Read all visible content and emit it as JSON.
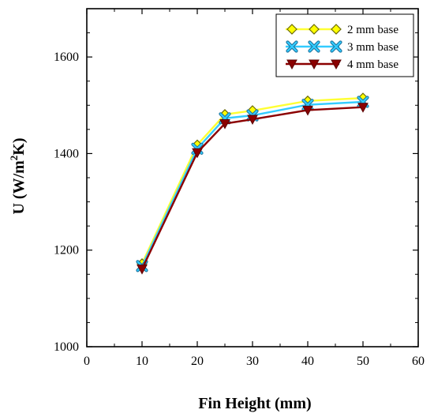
{
  "chart_data": {
    "type": "line",
    "title": "",
    "xlabel": "Fin Height (mm)",
    "ylabel_main": "U (W/m",
    "ylabel_sup": "2",
    "ylabel_tail": "K)",
    "xlim": [
      0,
      60
    ],
    "ylim": [
      1000,
      1700
    ],
    "xticks": [
      0,
      10,
      20,
      30,
      40,
      50,
      60
    ],
    "yticks": [
      1000,
      1200,
      1400,
      1600
    ],
    "grid": false,
    "legend_position": "top-right",
    "x": [
      10,
      20,
      25,
      30,
      40,
      50
    ],
    "series": [
      {
        "name": "2 mm base",
        "marker": "diamond",
        "color": "#ffff33",
        "marker_fill": "#ffff00",
        "marker_stroke": "#6b6b00",
        "values": [
          1172,
          1418,
          1481,
          1489,
          1509,
          1515
        ]
      },
      {
        "name": "3 mm base",
        "marker": "x",
        "color": "#33ccff",
        "marker_fill": "#33ccff",
        "marker_stroke": "#1a6f9a",
        "values": [
          1167,
          1410,
          1473,
          1479,
          1501,
          1507
        ]
      },
      {
        "name": "4 mm base",
        "marker": "triangle-down",
        "color": "#8b0000",
        "marker_fill": "#8b0000",
        "marker_stroke": "#5a0000",
        "values": [
          1161,
          1402,
          1462,
          1471,
          1490,
          1496
        ]
      }
    ]
  }
}
